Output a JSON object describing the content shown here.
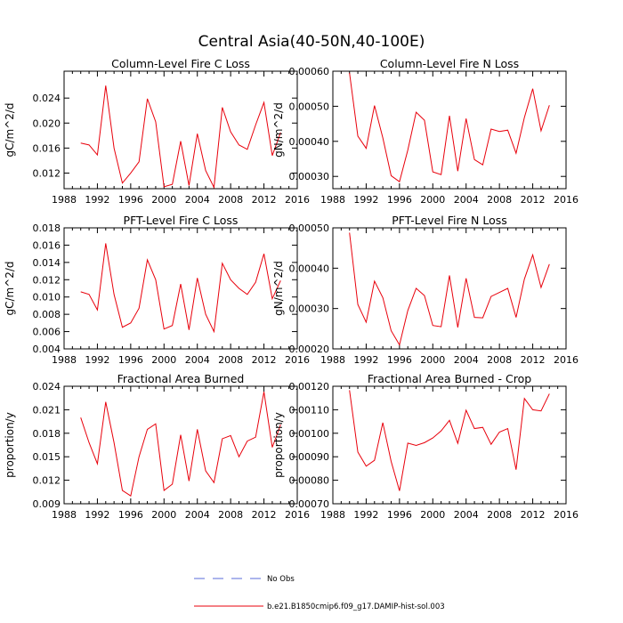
{
  "figure": {
    "title": "Central Asia(40-50N,40-100E)"
  },
  "legend": [
    {
      "label": "No Obs",
      "style": "dashed",
      "color": "#5a6bd8"
    },
    {
      "label": "b.e21.B1850cmip6.f09_g17.DAMIP-hist-sol.003",
      "style": "solid",
      "color": "#e8000b"
    }
  ],
  "chart_data": [
    {
      "type": "line",
      "title": "Column-Level Fire C Loss",
      "ylabel": "gC/m^2/d",
      "xlim": [
        1988,
        2016
      ],
      "xticks": [
        "1988",
        "1992",
        "1996",
        "2000",
        "2004",
        "2008",
        "2012",
        "2016"
      ],
      "ylim": [
        0.0095,
        0.0283
      ],
      "yticks": [
        "0.012",
        "0.016",
        "0.020",
        "0.024"
      ],
      "x": [
        1990,
        1991,
        1992,
        1993,
        1994,
        1995,
        1996,
        1997,
        1998,
        1999,
        2000,
        2001,
        2002,
        2003,
        2004,
        2005,
        2006,
        2007,
        2008,
        2009,
        2010,
        2011,
        2012,
        2013,
        2014
      ],
      "series": [
        {
          "color": "#e8000b",
          "values": [
            0.0168,
            0.0165,
            0.0149,
            0.026,
            0.016,
            0.0104,
            0.012,
            0.0138,
            0.0239,
            0.0202,
            0.0098,
            0.0102,
            0.0171,
            0.01,
            0.0183,
            0.0124,
            0.0097,
            0.0225,
            0.0186,
            0.0165,
            0.0158,
            0.0197,
            0.0233,
            0.0148,
            0.0185
          ]
        }
      ]
    },
    {
      "type": "line",
      "title": "Column-Level Fire N Loss",
      "ylabel": "gN/m^2/d",
      "xlim": [
        1988,
        2016
      ],
      "xticks": [
        "1988",
        "1992",
        "1996",
        "2000",
        "2004",
        "2008",
        "2012",
        "2016"
      ],
      "ylim": [
        0.000265,
        0.0006
      ],
      "yticks": [
        "0.00030",
        "0.00040",
        "0.00050",
        "0.00060"
      ],
      "x": [
        1990,
        1991,
        1992,
        1993,
        1994,
        1995,
        1996,
        1997,
        1998,
        1999,
        2000,
        2001,
        2002,
        2003,
        2004,
        2005,
        2006,
        2007,
        2008,
        2009,
        2010,
        2011,
        2012,
        2013,
        2014
      ],
      "series": [
        {
          "color": "#e8000b",
          "values": [
            0.000595,
            0.000415,
            0.00038,
            0.000502,
            0.00041,
            0.000302,
            0.000285,
            0.000375,
            0.000483,
            0.00046,
            0.000313,
            0.000305,
            0.000473,
            0.000315,
            0.000465,
            0.000348,
            0.000333,
            0.000435,
            0.000428,
            0.000432,
            0.000366,
            0.000468,
            0.00055,
            0.00043,
            0.000503
          ]
        }
      ]
    },
    {
      "type": "line",
      "title": "PFT-Level Fire C Loss",
      "ylabel": "gC/m^2/d",
      "xlim": [
        1988,
        2016
      ],
      "xticks": [
        "1988",
        "1992",
        "1996",
        "2000",
        "2004",
        "2008",
        "2012",
        "2016"
      ],
      "ylim": [
        0.004,
        0.018
      ],
      "yticks": [
        "0.004",
        "0.006",
        "0.008",
        "0.010",
        "0.012",
        "0.014",
        "0.016",
        "0.018"
      ],
      "x": [
        1990,
        1991,
        1992,
        1993,
        1994,
        1995,
        1996,
        1997,
        1998,
        1999,
        2000,
        2001,
        2002,
        2003,
        2004,
        2005,
        2006,
        2007,
        2008,
        2009,
        2010,
        2011,
        2012,
        2013,
        2014
      ],
      "series": [
        {
          "color": "#e8000b",
          "values": [
            0.0106,
            0.0103,
            0.0085,
            0.0162,
            0.0103,
            0.0065,
            0.007,
            0.0087,
            0.0143,
            0.012,
            0.0063,
            0.0067,
            0.0115,
            0.0062,
            0.0122,
            0.008,
            0.006,
            0.0139,
            0.012,
            0.011,
            0.0103,
            0.0117,
            0.015,
            0.0098,
            0.0119
          ]
        }
      ]
    },
    {
      "type": "line",
      "title": "PFT-Level Fire N Loss",
      "ylabel": "gN/m^2/d",
      "xlim": [
        1988,
        2016
      ],
      "xticks": [
        "1988",
        "1992",
        "1996",
        "2000",
        "2004",
        "2008",
        "2012",
        "2016"
      ],
      "ylim": [
        0.0002,
        0.0005
      ],
      "yticks": [
        "0.00020",
        "0.00030",
        "0.00040",
        "0.00050"
      ],
      "x": [
        1990,
        1991,
        1992,
        1993,
        1994,
        1995,
        1996,
        1997,
        1998,
        1999,
        2000,
        2001,
        2002,
        2003,
        2004,
        2005,
        2006,
        2007,
        2008,
        2009,
        2010,
        2011,
        2012,
        2013,
        2014
      ],
      "series": [
        {
          "color": "#e8000b",
          "values": [
            0.000488,
            0.00031,
            0.000266,
            0.000368,
            0.000327,
            0.000245,
            0.00021,
            0.000295,
            0.00035,
            0.000332,
            0.000258,
            0.000255,
            0.000382,
            0.000253,
            0.000375,
            0.000278,
            0.000277,
            0.00033,
            0.00034,
            0.00035,
            0.000278,
            0.000373,
            0.000433,
            0.000352,
            0.00041
          ]
        }
      ]
    },
    {
      "type": "line",
      "title": "Fractional Area Burned",
      "ylabel": "proportion/y",
      "xlim": [
        1988,
        2016
      ],
      "xticks": [
        "1988",
        "1992",
        "1996",
        "2000",
        "2004",
        "2008",
        "2012",
        "2016"
      ],
      "ylim": [
        0.009,
        0.024
      ],
      "yticks": [
        "0.009",
        "0.012",
        "0.015",
        "0.018",
        "0.021",
        "0.024"
      ],
      "x": [
        1990,
        1991,
        1992,
        1993,
        1994,
        1995,
        1996,
        1997,
        1998,
        1999,
        2000,
        2001,
        2002,
        2003,
        2004,
        2005,
        2006,
        2007,
        2008,
        2009,
        2010,
        2011,
        2012,
        2013,
        2014
      ],
      "series": [
        {
          "color": "#e8000b",
          "values": [
            0.02,
            0.0168,
            0.0141,
            0.022,
            0.0168,
            0.0107,
            0.01,
            0.015,
            0.0185,
            0.0192,
            0.0107,
            0.0115,
            0.0178,
            0.0119,
            0.0185,
            0.0132,
            0.0117,
            0.0173,
            0.0177,
            0.015,
            0.017,
            0.0175,
            0.0233,
            0.0162,
            0.0191
          ]
        }
      ]
    },
    {
      "type": "line",
      "title": "Fractional Area Burned - Crop",
      "ylabel": "proportion/y",
      "xlim": [
        1988,
        2016
      ],
      "xticks": [
        "1988",
        "1992",
        "1996",
        "2000",
        "2004",
        "2008",
        "2012",
        "2016"
      ],
      "ylim": [
        0.0007,
        0.0012
      ],
      "yticks": [
        "0.00070",
        "0.00080",
        "0.00090",
        "0.00100",
        "0.00110",
        "0.00120"
      ],
      "x": [
        1990,
        1991,
        1992,
        1993,
        1994,
        1995,
        1996,
        1997,
        1998,
        1999,
        2000,
        2001,
        2002,
        2003,
        2004,
        2005,
        2006,
        2007,
        2008,
        2009,
        2010,
        2011,
        2012,
        2013,
        2014
      ],
      "series": [
        {
          "color": "#e8000b",
          "values": [
            0.001183,
            0.00092,
            0.00086,
            0.000885,
            0.001045,
            0.00088,
            0.000755,
            0.000958,
            0.000948,
            0.00096,
            0.00098,
            0.00101,
            0.001055,
            0.000957,
            0.001098,
            0.00102,
            0.001025,
            0.000953,
            0.001005,
            0.00102,
            0.000845,
            0.001148,
            0.0011,
            0.001095,
            0.001168
          ]
        }
      ]
    }
  ]
}
